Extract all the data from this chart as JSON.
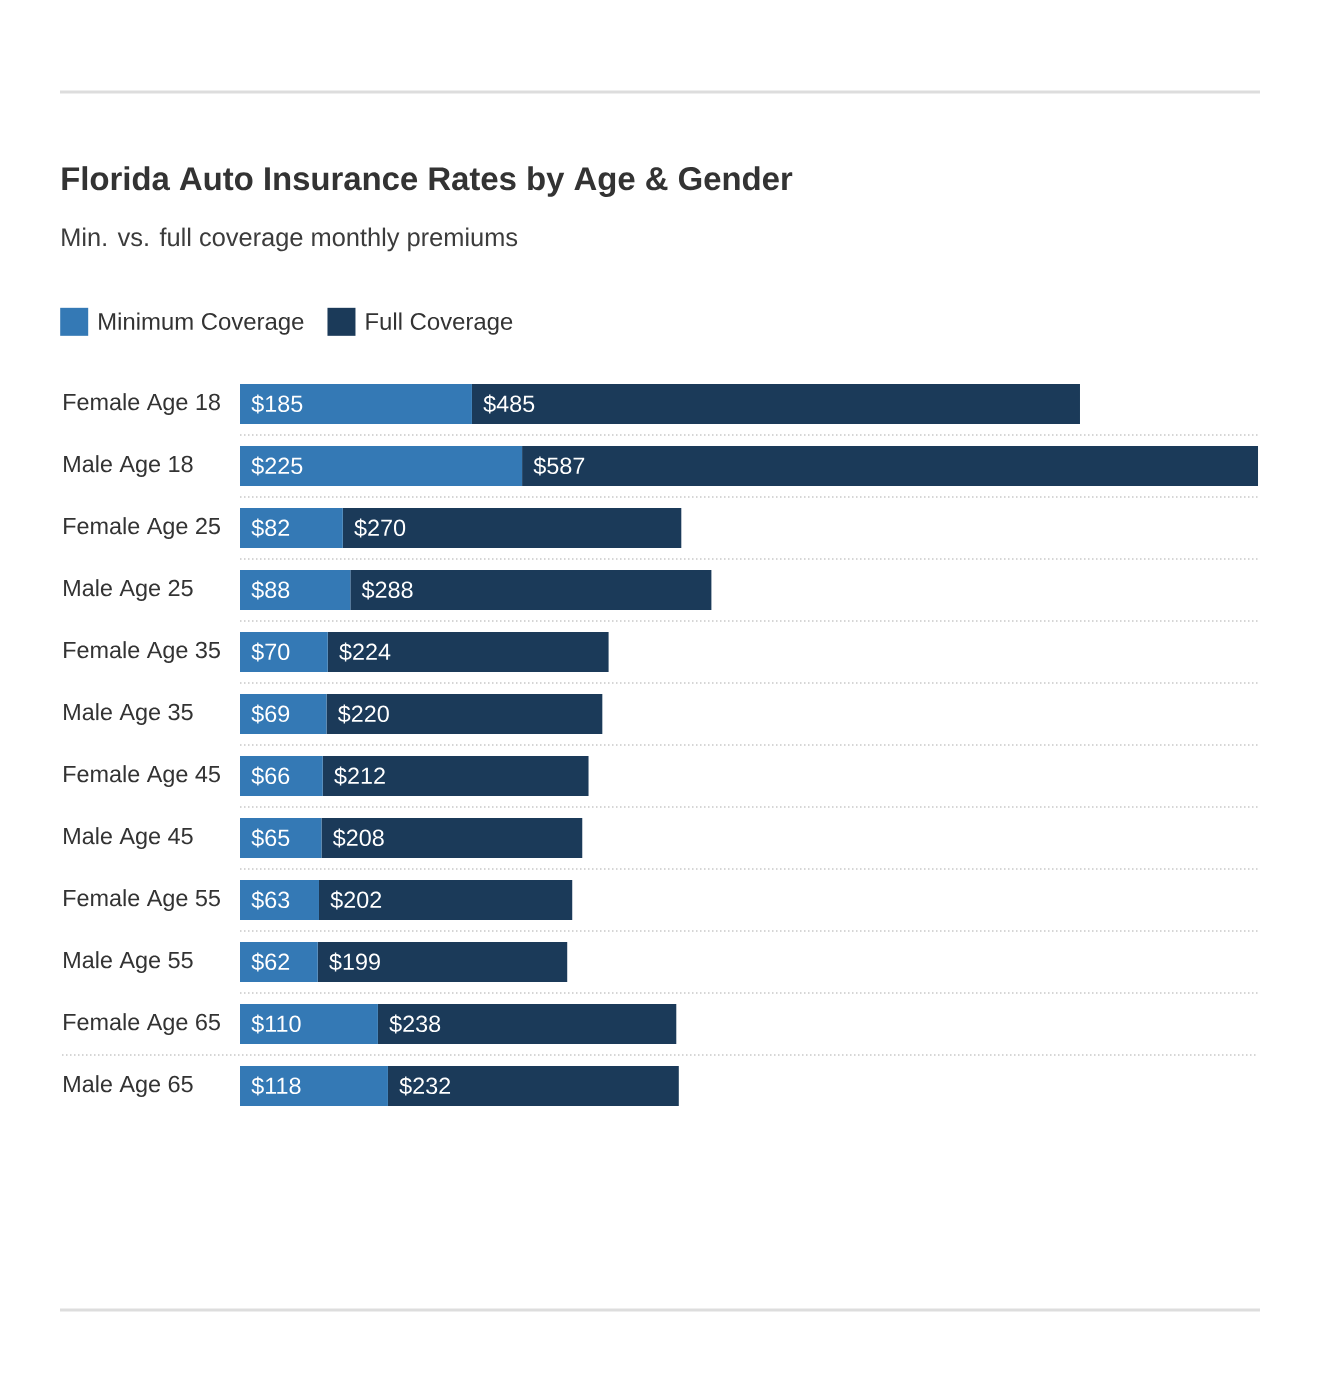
{
  "chart_data": {
    "type": "bar",
    "orientation": "horizontal",
    "stacked": true,
    "title": "Florida Auto Insurance Rates by Age & Gender",
    "subtitle": "Min. vs. full coverage monthly premiums",
    "categories": [
      "Female Age 18",
      "Male Age 18",
      "Female Age 25",
      "Male Age 25",
      "Female Age 35",
      "Male Age 35",
      "Female Age 45",
      "Male Age 45",
      "Female Age 55",
      "Male Age 55",
      "Female Age 65",
      "Male Age 65"
    ],
    "series": [
      {
        "name": "Minimum Coverage",
        "color": "#3479b5",
        "values": [
          185,
          225,
          82,
          88,
          70,
          69,
          66,
          65,
          63,
          62,
          110,
          118
        ],
        "value_labels": [
          "$185",
          "$225",
          "$82",
          "$88",
          "$70",
          "$69",
          "$66",
          "$65",
          "$63",
          "$62",
          "$110",
          "$118"
        ]
      },
      {
        "name": "Full Coverage",
        "color": "#1b3a59",
        "values": [
          485,
          587,
          270,
          288,
          224,
          220,
          212,
          208,
          202,
          199,
          238,
          232
        ],
        "value_labels": [
          "$485",
          "$587",
          "$270",
          "$288",
          "$224",
          "$220",
          "$212",
          "$208",
          "$202",
          "$199",
          "$238",
          "$232"
        ]
      }
    ],
    "legend": "top left",
    "grid": "y",
    "tick_labels": "y"
  }
}
